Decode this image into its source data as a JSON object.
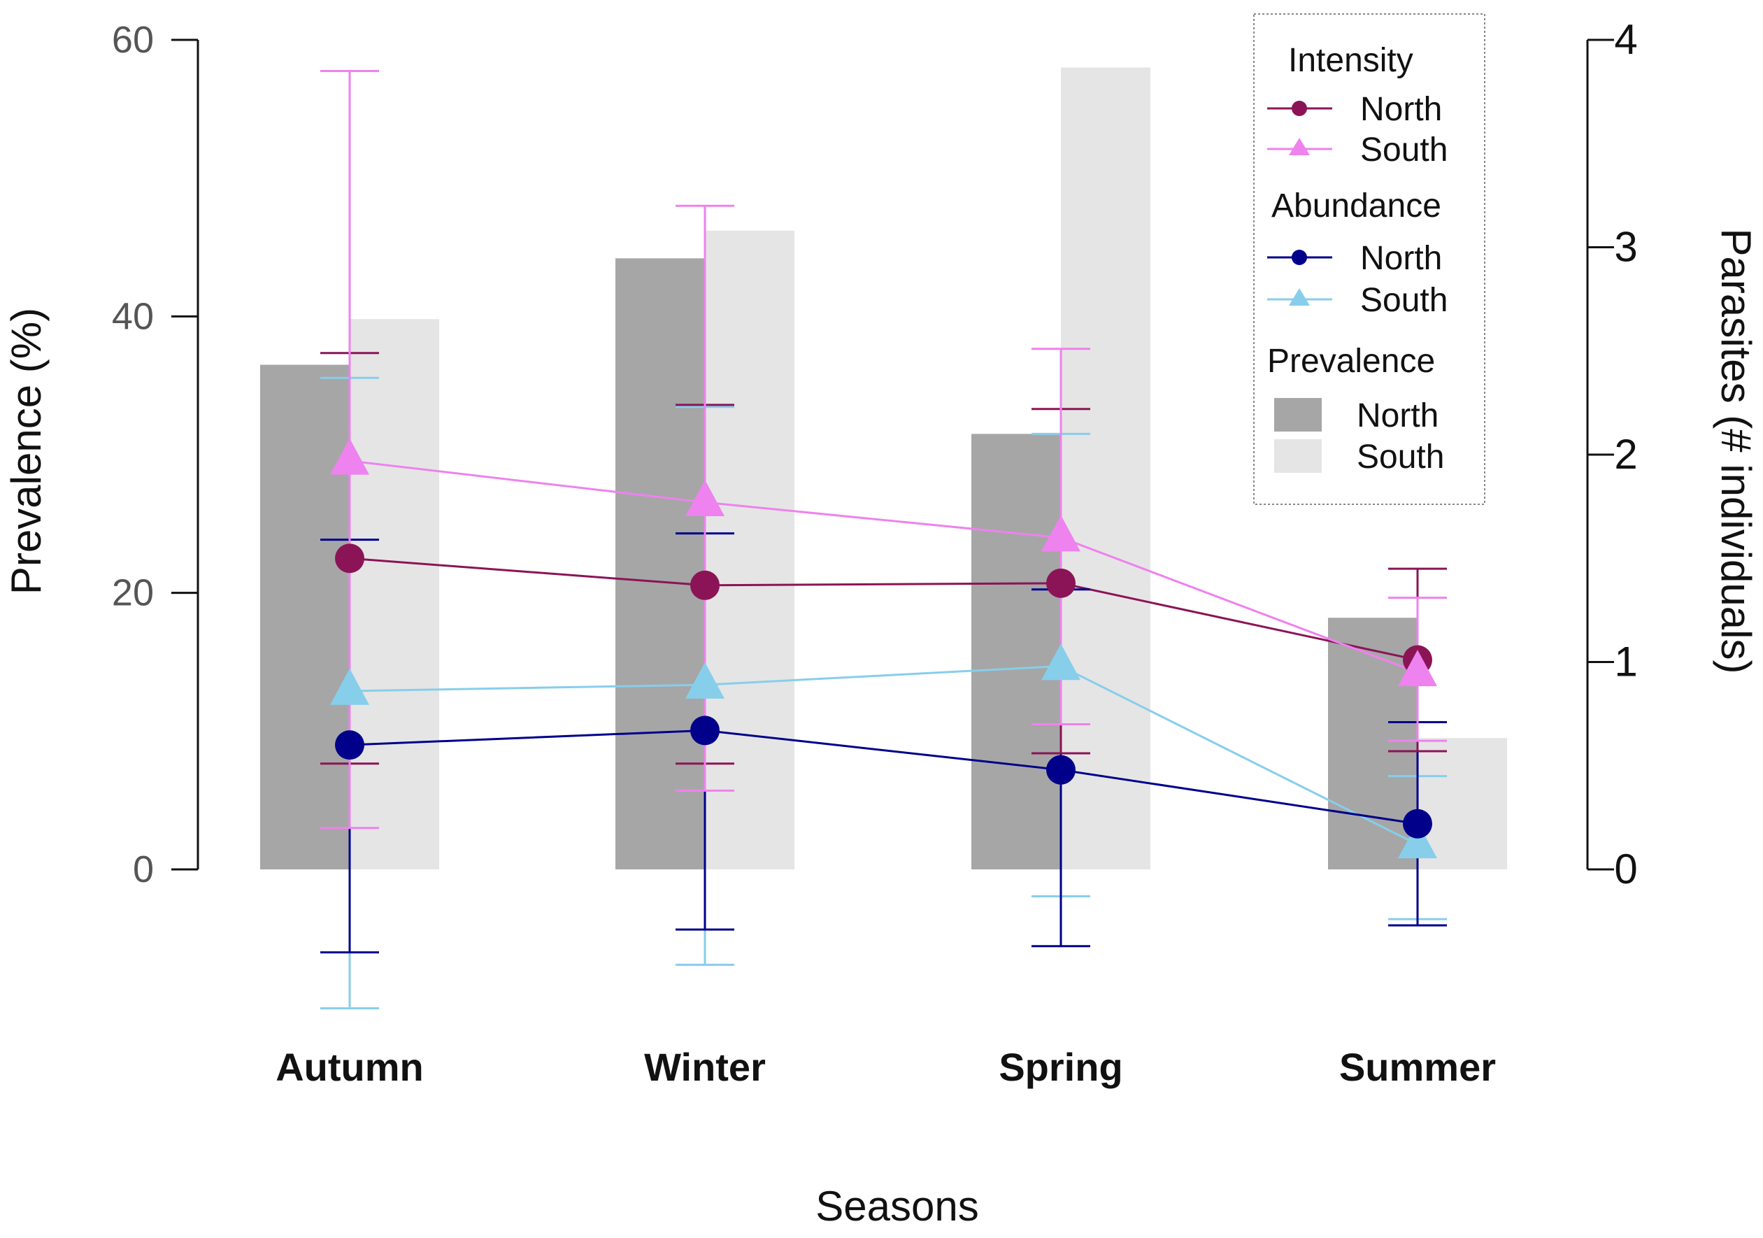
{
  "chart_data": {
    "type": "bar+line",
    "categories": [
      "Autumn",
      "Winter",
      "Spring",
      "Summer"
    ],
    "xlabel": "Seasons",
    "ylabel_left": "Prevalence (%)",
    "ylabel_right": "Parasites (# individuals)",
    "ylim_left": [
      0,
      60
    ],
    "yticks_left": [
      "0",
      "20",
      "40",
      "60"
    ],
    "ylim_right": [
      0,
      4
    ],
    "yticks_right": [
      "0",
      "1",
      "2",
      "3",
      "4"
    ],
    "grid": false,
    "legend_position": "top-right",
    "prevalence": {
      "legend_title": "Prevalence",
      "series": [
        {
          "name": "North",
          "color": "#a6a6a6",
          "values": [
            36.5,
            44.2,
            31.5,
            18.2
          ]
        },
        {
          "name": "South",
          "color": "#e5e5e5",
          "values": [
            39.8,
            46.2,
            58.0,
            9.5
          ]
        }
      ]
    },
    "intensity": {
      "legend_title": "Intensity",
      "series": [
        {
          "name": "North",
          "color": "#8b1456",
          "marker": "circle",
          "values": [
            1.5,
            1.37,
            1.38,
            1.01
          ],
          "err_low": [
            0.51,
            0.51,
            0.56,
            0.57
          ],
          "err_high": [
            2.49,
            2.24,
            2.22,
            1.45
          ]
        },
        {
          "name": "South",
          "color": "#ee82ee",
          "marker": "triangle",
          "values": [
            1.97,
            1.77,
            1.6,
            0.95
          ],
          "err_low": [
            0.2,
            0.38,
            0.7,
            0.62
          ],
          "err_high": [
            3.85,
            3.2,
            2.51,
            1.31
          ]
        }
      ]
    },
    "abundance": {
      "legend_title": "Abundance",
      "series": [
        {
          "name": "North",
          "color": "#00008b",
          "marker": "circle",
          "values": [
            0.6,
            0.67,
            0.48,
            0.22
          ],
          "err_low": [
            -0.4,
            -0.29,
            -0.37,
            -0.27
          ],
          "err_high": [
            1.59,
            1.62,
            1.35,
            0.71
          ]
        },
        {
          "name": "South",
          "color": "#87ceeb",
          "marker": "triangle",
          "values": [
            0.86,
            0.89,
            0.98,
            0.12
          ],
          "err_low": [
            -0.67,
            -0.46,
            -0.13,
            -0.24
          ],
          "err_high": [
            2.37,
            2.23,
            2.1,
            0.45
          ]
        }
      ]
    }
  }
}
